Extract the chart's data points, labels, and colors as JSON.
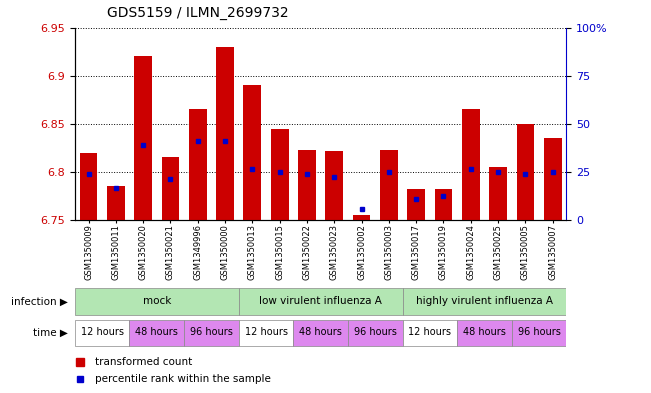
{
  "title": "GDS5159 / ILMN_2699732",
  "samples": [
    "GSM1350009",
    "GSM1350011",
    "GSM1350020",
    "GSM1350021",
    "GSM1349996",
    "GSM1350000",
    "GSM1350013",
    "GSM1350015",
    "GSM1350022",
    "GSM1350023",
    "GSM1350002",
    "GSM1350003",
    "GSM1350017",
    "GSM1350019",
    "GSM1350024",
    "GSM1350025",
    "GSM1350005",
    "GSM1350007"
  ],
  "red_values": [
    6.82,
    6.785,
    6.92,
    6.815,
    6.865,
    6.93,
    6.89,
    6.845,
    6.823,
    6.822,
    6.755,
    6.823,
    6.782,
    6.782,
    6.865,
    6.805,
    6.85,
    6.835
  ],
  "blue_values": [
    6.798,
    6.783,
    6.828,
    6.793,
    6.832,
    6.832,
    6.803,
    6.8,
    6.798,
    6.795,
    6.762,
    6.8,
    6.772,
    6.775,
    6.803,
    6.8,
    6.798,
    6.8
  ],
  "ymin": 6.75,
  "ymax": 6.95,
  "yticks_left": [
    6.75,
    6.8,
    6.85,
    6.9,
    6.95
  ],
  "yticks_right_pct": [
    0,
    25,
    50,
    75,
    100
  ],
  "bar_color": "#cc0000",
  "dot_color": "#0000cc",
  "infection_labels": [
    "mock",
    "low virulent influenza A",
    "highly virulent influenza A"
  ],
  "infection_ranges": [
    [
      0,
      6
    ],
    [
      6,
      12
    ],
    [
      12,
      18
    ]
  ],
  "infection_color": "#b3e6b3",
  "time_labels": [
    "12 hours",
    "48 hours",
    "96 hours",
    "12 hours",
    "48 hours",
    "96 hours",
    "12 hours",
    "48 hours",
    "96 hours"
  ],
  "time_ranges": [
    [
      0,
      2
    ],
    [
      2,
      4
    ],
    [
      4,
      6
    ],
    [
      6,
      8
    ],
    [
      8,
      10
    ],
    [
      10,
      12
    ],
    [
      12,
      14
    ],
    [
      14,
      16
    ],
    [
      16,
      18
    ]
  ],
  "time_colors": [
    "#ffffff",
    "#dd88ee",
    "#dd88ee",
    "#ffffff",
    "#dd88ee",
    "#dd88ee",
    "#ffffff",
    "#dd88ee",
    "#dd88ee"
  ],
  "legend_items": [
    {
      "label": "transformed count",
      "color": "#cc0000"
    },
    {
      "label": "percentile rank within the sample",
      "color": "#0000cc"
    }
  ]
}
